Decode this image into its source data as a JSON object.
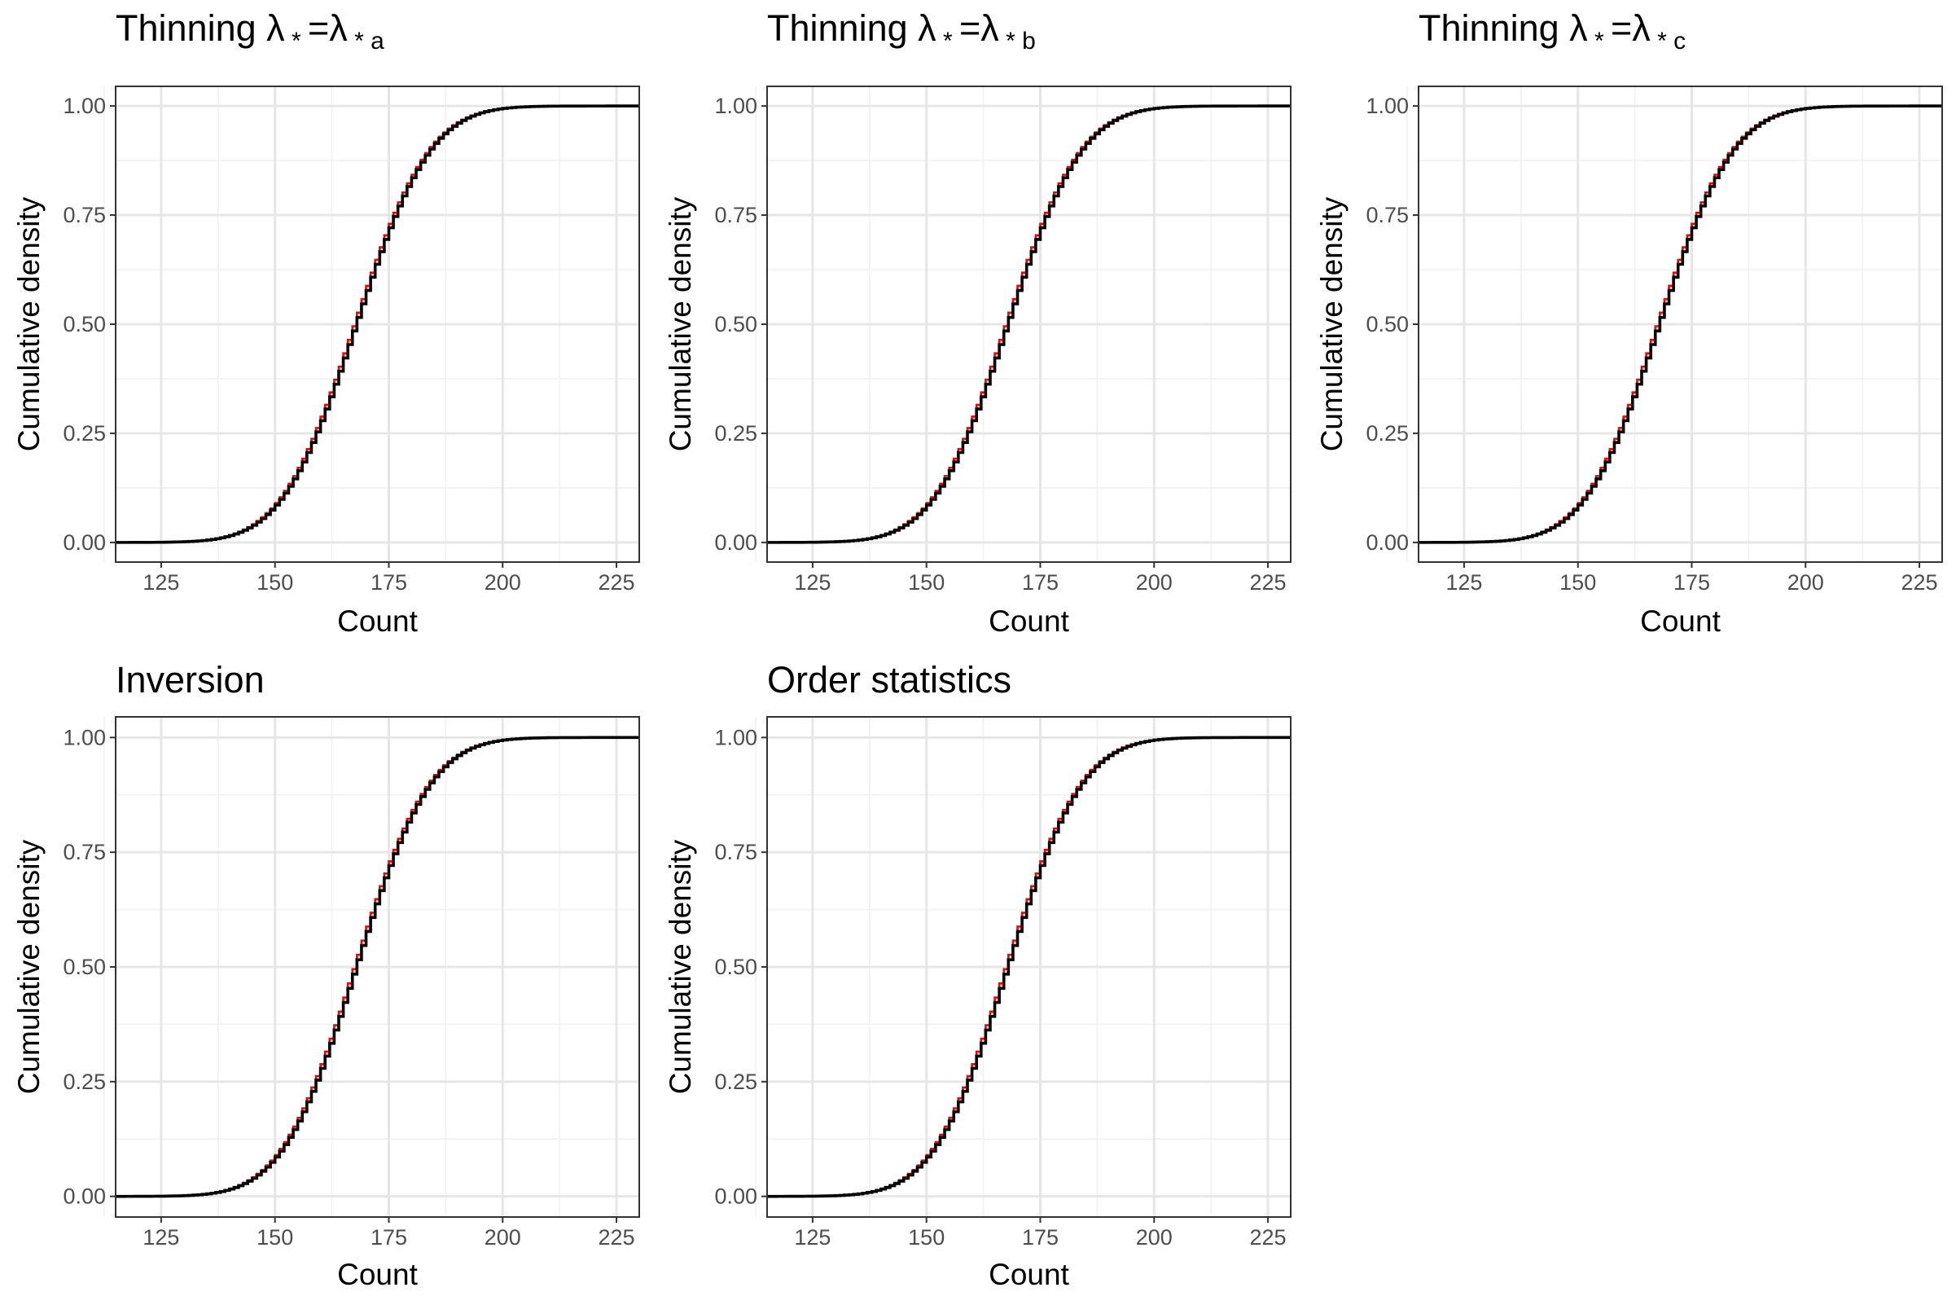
{
  "chart_data": [
    {
      "type": "line",
      "title": "Thinning λ * =λ * a",
      "title_main": "Thinning λ",
      "title_sub1": " * ",
      "title_mid": "=λ",
      "title_sub2": " * a",
      "xlabel": "Count",
      "ylabel": "Cumulative density",
      "xlim": [
        115,
        230
      ],
      "ylim": [
        0,
        1
      ],
      "x_ticks": [
        "125",
        "150",
        "175",
        "200",
        "225"
      ],
      "y_ticks": [
        "0.00",
        "0.25",
        "0.50",
        "0.75",
        "1.00"
      ],
      "grid": true,
      "series": [
        {
          "mean": 168.0,
          "sd": 12.8,
          "color": "#ff0000",
          "style": "step"
        },
        {
          "mean": 168.0,
          "sd": 12.8,
          "color": "#000000",
          "style": "step"
        }
      ]
    },
    {
      "type": "line",
      "title": "Thinning λ * =λ * b",
      "title_main": "Thinning λ",
      "title_sub1": " * ",
      "title_mid": "=λ",
      "title_sub2": " * b",
      "xlabel": "Count",
      "ylabel": "Cumulative density",
      "xlim": [
        115,
        230
      ],
      "ylim": [
        0,
        1
      ],
      "x_ticks": [
        "125",
        "150",
        "175",
        "200",
        "225"
      ],
      "y_ticks": [
        "0.00",
        "0.25",
        "0.50",
        "0.75",
        "1.00"
      ],
      "grid": true,
      "series": [
        {
          "mean": 168.0,
          "sd": 12.8,
          "color": "#ff0000",
          "style": "step"
        },
        {
          "mean": 168.0,
          "sd": 12.8,
          "color": "#000000",
          "style": "step"
        }
      ]
    },
    {
      "type": "line",
      "title": "Thinning λ * =λ * c",
      "title_main": "Thinning λ",
      "title_sub1": " * ",
      "title_mid": "=λ",
      "title_sub2": " * c",
      "xlabel": "Count",
      "ylabel": "Cumulative density",
      "xlim": [
        115,
        230
      ],
      "ylim": [
        0,
        1
      ],
      "x_ticks": [
        "125",
        "150",
        "175",
        "200",
        "225"
      ],
      "y_ticks": [
        "0.00",
        "0.25",
        "0.50",
        "0.75",
        "1.00"
      ],
      "grid": true,
      "series": [
        {
          "mean": 168.0,
          "sd": 12.8,
          "color": "#ff0000",
          "style": "step"
        },
        {
          "mean": 168.0,
          "sd": 12.8,
          "color": "#000000",
          "style": "step"
        }
      ]
    },
    {
      "type": "line",
      "title": "Inversion",
      "title_main": "Inversion",
      "xlabel": "Count",
      "ylabel": "Cumulative density",
      "xlim": [
        115,
        230
      ],
      "ylim": [
        0,
        1
      ],
      "x_ticks": [
        "125",
        "150",
        "175",
        "200",
        "225"
      ],
      "y_ticks": [
        "0.00",
        "0.25",
        "0.50",
        "0.75",
        "1.00"
      ],
      "grid": true,
      "series": [
        {
          "mean": 168.0,
          "sd": 12.8,
          "color": "#ff0000",
          "style": "step"
        },
        {
          "mean": 168.0,
          "sd": 12.8,
          "color": "#000000",
          "style": "step"
        }
      ]
    },
    {
      "type": "line",
      "title": "Order statistics",
      "title_main": "Order statistics",
      "xlabel": "Count",
      "ylabel": "Cumulative density",
      "xlim": [
        115,
        230
      ],
      "ylim": [
        0,
        1
      ],
      "x_ticks": [
        "125",
        "150",
        "175",
        "200",
        "225"
      ],
      "y_ticks": [
        "0.00",
        "0.25",
        "0.50",
        "0.75",
        "1.00"
      ],
      "grid": true,
      "series": [
        {
          "mean": 168.0,
          "sd": 12.8,
          "color": "#ff0000",
          "style": "step"
        },
        {
          "mean": 168.0,
          "sd": 12.8,
          "color": "#000000",
          "style": "step"
        }
      ]
    }
  ]
}
